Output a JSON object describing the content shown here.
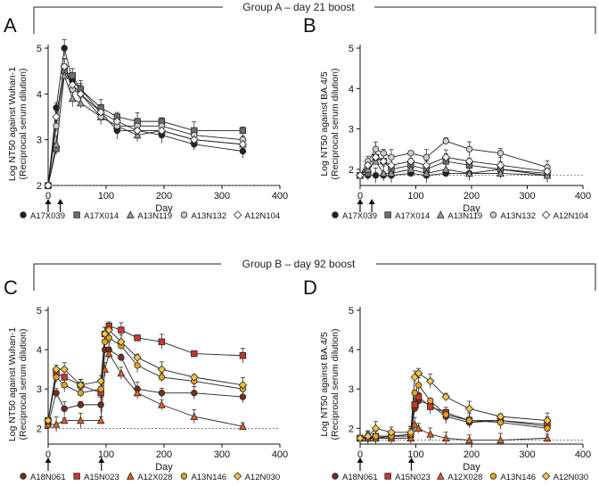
{
  "group_titles": {
    "a": "Group A – day 21 boost",
    "b": "Group B – day 92 boost"
  },
  "colors": {
    "black": "#222222",
    "dark_grey": "#6e6e6e",
    "mid_grey": "#9a9a9a",
    "light_grey": "#cfcfcf",
    "white": "#ffffff",
    "brown": "#7a2d1e",
    "red": "#c8382b",
    "orange_red": "#e0601e",
    "gold": "#e3a51e",
    "light_gold": "#f6c445"
  },
  "chart_data": [
    {
      "panel_label": "A",
      "type": "line",
      "ylabel_lines": [
        "Log NT50 against Wuhan-1",
        "(Reciprocal serum dilution)"
      ],
      "xlabel": "Day",
      "xlim": [
        0,
        400
      ],
      "ylim": [
        2,
        5
      ],
      "xticks": [
        "0",
        "100",
        "200",
        "300",
        "400"
      ],
      "yticks": [
        "2",
        "3",
        "4",
        "5"
      ],
      "baseline": 2,
      "dose_days": [
        0,
        21
      ],
      "series": [
        {
          "name": "A17X039",
          "marker": "circle",
          "color": "#222222",
          "x": [
            0,
            14,
            28,
            42,
            56,
            91,
            119,
            154,
            196,
            252,
            336
          ],
          "y": [
            2.0,
            3.7,
            5.0,
            4.3,
            4.1,
            3.6,
            3.2,
            3.2,
            3.1,
            2.9,
            2.75
          ]
        },
        {
          "name": "A17X014",
          "marker": "square",
          "color": "#6e6e6e",
          "x": [
            0,
            14,
            28,
            42,
            56,
            91,
            119,
            154,
            196,
            252,
            336
          ],
          "y": [
            2.0,
            2.8,
            4.5,
            4.4,
            4.1,
            3.7,
            3.5,
            3.4,
            3.4,
            3.2,
            3.2
          ]
        },
        {
          "name": "A13N119",
          "marker": "triangle",
          "color": "#9a9a9a",
          "x": [
            0,
            14,
            28,
            42,
            56,
            91,
            119,
            154,
            196,
            252,
            336
          ],
          "y": [
            2.0,
            2.9,
            4.4,
            3.9,
            3.8,
            3.5,
            3.3,
            3.1,
            3.2,
            3.0,
            2.9
          ]
        },
        {
          "name": "A13N132",
          "marker": "circle",
          "color": "#cfcfcf",
          "x": [
            0,
            14,
            28,
            42,
            56,
            91,
            119,
            154,
            196,
            252,
            336
          ],
          "y": [
            2.0,
            3.3,
            4.6,
            4.1,
            4.0,
            3.5,
            3.3,
            3.3,
            3.3,
            3.1,
            3.0
          ]
        },
        {
          "name": "A12N104",
          "marker": "diamond",
          "color": "#ffffff",
          "x": [
            0,
            14,
            28,
            42,
            56,
            91,
            119,
            154,
            196,
            252,
            336
          ],
          "y": [
            2.0,
            3.5,
            4.6,
            4.2,
            4.0,
            3.6,
            3.4,
            3.2,
            3.2,
            3.0,
            2.9
          ]
        }
      ]
    },
    {
      "panel_label": "B",
      "type": "line",
      "ylabel_lines": [
        "Log NT50 against BA.4/5",
        "(Reciprocal serum dilution)"
      ],
      "xlabel": "Day",
      "xlim": [
        0,
        400
      ],
      "ylim": [
        1.6,
        5
      ],
      "xticks": [
        "0",
        "100",
        "200",
        "300",
        "400"
      ],
      "yticks": [
        "2",
        "3",
        "4",
        "5"
      ],
      "baseline": 1.85,
      "dose_days": [
        0,
        21
      ],
      "series": [
        {
          "name": "A17X039",
          "marker": "circle",
          "color": "#222222",
          "x": [
            0,
            14,
            28,
            42,
            56,
            91,
            119,
            154,
            196,
            252,
            336
          ],
          "y": [
            1.85,
            1.85,
            1.85,
            1.85,
            1.85,
            1.9,
            1.85,
            1.9,
            1.9,
            2.0,
            1.85
          ]
        },
        {
          "name": "A17X014",
          "marker": "square",
          "color": "#6e6e6e",
          "x": [
            0,
            14,
            28,
            42,
            56,
            91,
            119,
            154,
            196,
            252,
            336
          ],
          "y": [
            1.85,
            1.9,
            2.3,
            2.2,
            2.0,
            2.1,
            2.0,
            2.2,
            2.1,
            2.0,
            1.9
          ]
        },
        {
          "name": "A13N119",
          "marker": "triangle",
          "color": "#9a9a9a",
          "x": [
            0,
            14,
            28,
            42,
            56,
            91,
            119,
            154,
            196,
            252,
            336
          ],
          "y": [
            1.85,
            2.0,
            2.2,
            1.9,
            1.9,
            2.0,
            1.9,
            2.0,
            1.9,
            1.9,
            1.85
          ]
        },
        {
          "name": "A13N132",
          "marker": "circle",
          "color": "#cfcfcf",
          "x": [
            0,
            14,
            28,
            42,
            56,
            91,
            119,
            154,
            196,
            252,
            336
          ],
          "y": [
            1.85,
            2.2,
            2.5,
            2.4,
            2.3,
            2.4,
            2.3,
            2.7,
            2.5,
            2.4,
            2.05
          ]
        },
        {
          "name": "A12N104",
          "marker": "diamond",
          "color": "#ffffff",
          "x": [
            0,
            14,
            28,
            42,
            56,
            91,
            119,
            154,
            196,
            252,
            336
          ],
          "y": [
            1.85,
            2.1,
            2.3,
            2.2,
            2.1,
            2.2,
            2.1,
            2.3,
            2.2,
            2.1,
            1.95
          ]
        }
      ]
    },
    {
      "panel_label": "C",
      "type": "line",
      "ylabel_lines": [
        "Log NT50 against Wuhan-1",
        "(Reciprocal serum dilution)"
      ],
      "xlabel": "Day",
      "xlim": [
        0,
        400
      ],
      "ylim": [
        1.6,
        5
      ],
      "xticks": [
        "0",
        "100",
        "200",
        "300",
        "400"
      ],
      "yticks": [
        "2",
        "3",
        "4",
        "5"
      ],
      "baseline": 2,
      "dose_days": [
        0,
        92
      ],
      "series": [
        {
          "name": "A18N061",
          "marker": "circle",
          "color": "#7a2d1e",
          "x": [
            0,
            14,
            28,
            56,
            91,
            98,
            105,
            126,
            154,
            196,
            252,
            336
          ],
          "y": [
            2.1,
            2.9,
            2.5,
            2.6,
            2.6,
            4.0,
            4.0,
            3.8,
            3.0,
            2.9,
            2.9,
            2.8
          ]
        },
        {
          "name": "A15N023",
          "marker": "square",
          "color": "#c8382b",
          "x": [
            0,
            14,
            28,
            56,
            91,
            98,
            105,
            126,
            154,
            196,
            252,
            336
          ],
          "y": [
            2.2,
            3.4,
            3.3,
            3.1,
            2.9,
            4.4,
            4.6,
            4.5,
            4.3,
            4.2,
            3.9,
            3.85
          ]
        },
        {
          "name": "A12X028",
          "marker": "triangle",
          "color": "#e0601e",
          "x": [
            0,
            14,
            28,
            56,
            91,
            98,
            105,
            126,
            154,
            196,
            252,
            336
          ],
          "y": [
            2.1,
            2.1,
            2.2,
            2.2,
            2.2,
            3.5,
            3.9,
            3.4,
            2.9,
            2.6,
            2.3,
            2.05
          ]
        },
        {
          "name": "A13N146",
          "marker": "circle",
          "color": "#e3a51e",
          "x": [
            0,
            14,
            28,
            56,
            91,
            98,
            105,
            126,
            154,
            196,
            252,
            336
          ],
          "y": [
            2.2,
            3.3,
            3.1,
            2.9,
            3.0,
            4.2,
            4.3,
            4.1,
            3.6,
            3.3,
            3.2,
            3.0
          ]
        },
        {
          "name": "A12N030",
          "marker": "diamond",
          "color": "#f6c445",
          "x": [
            0,
            14,
            28,
            56,
            91,
            98,
            105,
            126,
            154,
            196,
            252,
            336
          ],
          "y": [
            2.2,
            3.5,
            3.5,
            3.1,
            3.2,
            4.4,
            4.5,
            4.2,
            3.8,
            3.5,
            3.3,
            3.1
          ]
        }
      ]
    },
    {
      "panel_label": "D",
      "type": "line",
      "ylabel_lines": [
        "Log NT50 against BA.4/5",
        "(Reciprocal serum dilution)"
      ],
      "xlabel": "Day",
      "xlim": [
        0,
        400
      ],
      "ylim": [
        1.6,
        5
      ],
      "xticks": [
        "0",
        "100",
        "200",
        "300",
        "400"
      ],
      "yticks": [
        "2",
        "3",
        "4",
        "5"
      ],
      "baseline": 1.7,
      "dose_days": [
        0,
        92
      ],
      "series": [
        {
          "name": "A18N061",
          "marker": "circle",
          "color": "#7a2d1e",
          "x": [
            0,
            14,
            28,
            56,
            91,
            98,
            105,
            126,
            154,
            196,
            252,
            336
          ],
          "y": [
            1.75,
            1.75,
            1.75,
            1.8,
            1.8,
            2.5,
            2.7,
            2.6,
            2.3,
            2.15,
            2.2,
            2.05
          ]
        },
        {
          "name": "A15N023",
          "marker": "square",
          "color": "#c8382b",
          "x": [
            0,
            14,
            28,
            56,
            91,
            98,
            105,
            126,
            154,
            196,
            252,
            336
          ],
          "y": [
            1.75,
            1.75,
            1.8,
            1.8,
            1.85,
            2.6,
            2.8,
            2.55,
            2.4,
            2.2,
            2.2,
            2.1
          ]
        },
        {
          "name": "A12X028",
          "marker": "triangle",
          "color": "#e0601e",
          "x": [
            0,
            14,
            28,
            56,
            91,
            98,
            105,
            126,
            154,
            196,
            252,
            336
          ],
          "y": [
            1.75,
            1.75,
            1.75,
            1.75,
            1.75,
            2.1,
            2.0,
            1.85,
            1.75,
            1.7,
            1.7,
            1.75
          ]
        },
        {
          "name": "A13N146",
          "marker": "circle",
          "color": "#e3a51e",
          "x": [
            0,
            14,
            28,
            56,
            91,
            98,
            105,
            126,
            154,
            196,
            252,
            336
          ],
          "y": [
            1.75,
            1.8,
            1.8,
            1.8,
            1.85,
            2.9,
            3.1,
            2.7,
            2.35,
            2.2,
            2.15,
            2.0
          ]
        },
        {
          "name": "A12N030",
          "marker": "diamond",
          "color": "#f6c445",
          "x": [
            0,
            14,
            28,
            56,
            91,
            98,
            105,
            126,
            154,
            196,
            252,
            336
          ],
          "y": [
            1.75,
            1.8,
            2.0,
            1.9,
            1.9,
            3.3,
            3.4,
            3.2,
            2.8,
            2.5,
            2.3,
            2.2
          ]
        }
      ]
    }
  ]
}
